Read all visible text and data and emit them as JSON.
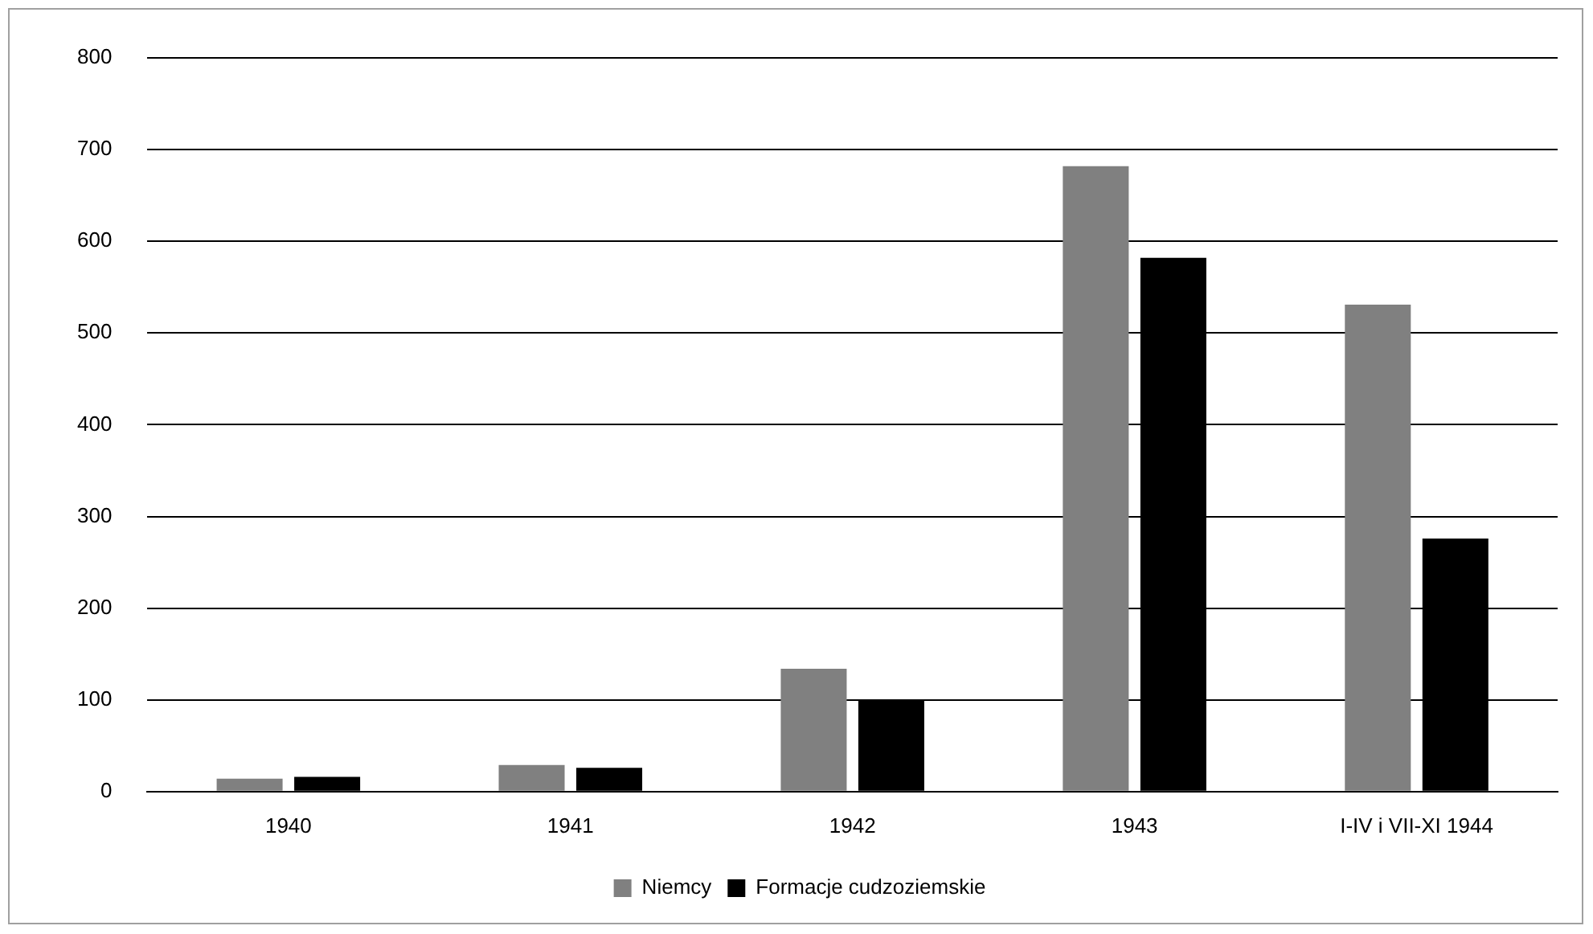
{
  "chart_data": {
    "type": "bar",
    "categories": [
      "1940",
      "1941",
      "1942",
      "1943",
      "I-IV i VII-XI 1944"
    ],
    "series": [
      {
        "name": "Niemcy",
        "color": "#808080",
        "values": [
          14,
          29,
          134,
          682,
          531
        ]
      },
      {
        "name": "Formacje cudzoziemskie",
        "color": "#000000",
        "values": [
          16,
          26,
          99,
          582,
          276
        ]
      }
    ],
    "ylim": [
      0,
      800
    ],
    "yticks": [
      0,
      100,
      200,
      300,
      400,
      500,
      600,
      700,
      800
    ],
    "grid": "y",
    "legend": "bottom"
  }
}
